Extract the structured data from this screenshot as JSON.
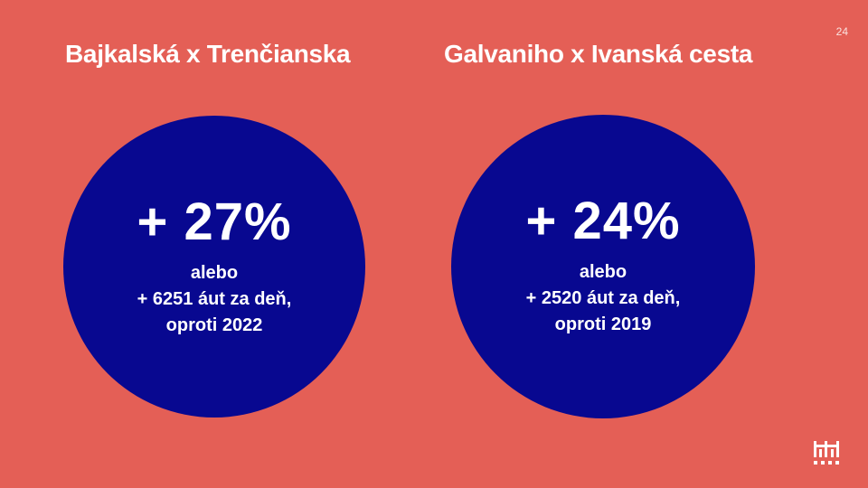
{
  "slide": {
    "page_number": "24",
    "background_color": "#E45F56",
    "circle_color": "#080890"
  },
  "panels": [
    {
      "title": "Bajkalská x Trenčianska",
      "percent": "+ 27%",
      "line1": "alebo",
      "line2": "+ 6251 áut za deň,",
      "line3": "oproti 2022"
    },
    {
      "title": "Galvaniho x Ivanská cesta",
      "percent": "+ 24%",
      "line1": "alebo",
      "line2": "+ 2520 áut za deň,",
      "line3": "oproti 2019"
    }
  ],
  "logo": {
    "icon": "castle-logo-icon"
  }
}
